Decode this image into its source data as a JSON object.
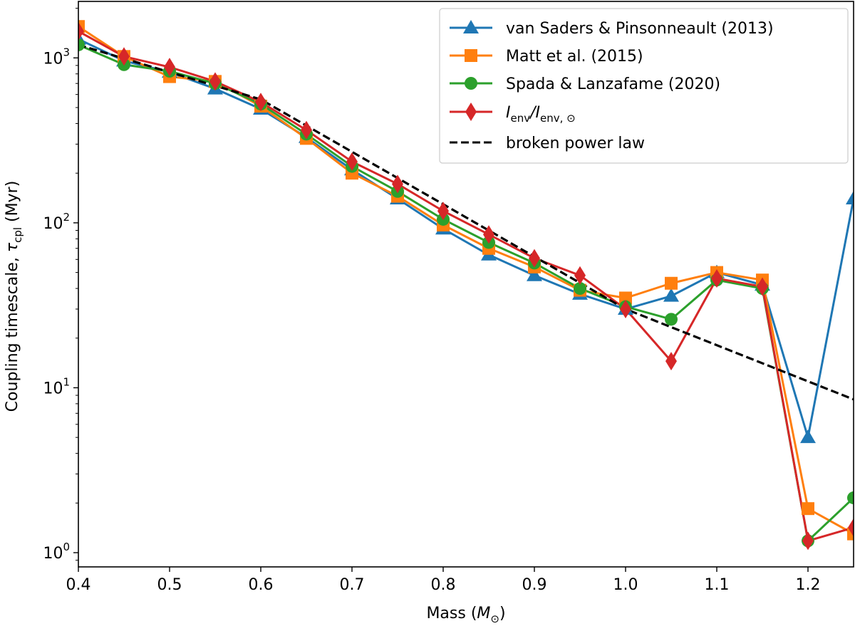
{
  "chart_data": {
    "type": "line",
    "xlabel": "Mass (",
    "xlabel_sym": "M",
    "xlabel_sub": "⊙",
    "xlabel_close": ")",
    "ylabel": "Coupling timescale, ",
    "ylabel_sym": "τ",
    "ylabel_sub": "cpl",
    "ylabel_unit": " (Myr)",
    "xlim": [
      0.4,
      1.25
    ],
    "ylim": [
      0.82,
      2200
    ],
    "yscale": "log",
    "grid": false,
    "legend_position": "top-right",
    "x_ticks": [
      "0.4",
      "0.5",
      "0.6",
      "0.7",
      "0.8",
      "0.9",
      "1.0",
      "1.1",
      "1.2"
    ],
    "y_ticks": [
      {
        "value": 1,
        "base": "10",
        "exp": "0"
      },
      {
        "value": 10,
        "base": "10",
        "exp": "1"
      },
      {
        "value": 100,
        "base": "10",
        "exp": "2"
      },
      {
        "value": 1000,
        "base": "10",
        "exp": "3"
      }
    ],
    "x": [
      0.4,
      0.45,
      0.5,
      0.55,
      0.6,
      0.65,
      0.7,
      0.75,
      0.8,
      0.85,
      0.9,
      0.95,
      1.0,
      1.05,
      1.1,
      1.15,
      1.2,
      1.25
    ],
    "series": [
      {
        "name": "van Saders & Pinsonneault (2013)",
        "color": "#1f77b4",
        "marker": "triangle",
        "values": [
          1300,
          960,
          820,
          650,
          490,
          330,
          210,
          140,
          92,
          64,
          48,
          37,
          30,
          36,
          50,
          42,
          5,
          140
        ]
      },
      {
        "name": "Matt et al. (2015)",
        "color": "#ff7f0e",
        "marker": "square",
        "values": [
          1550,
          1020,
          770,
          720,
          510,
          325,
          200,
          145,
          97,
          70,
          54,
          39,
          35,
          43,
          50,
          45,
          1.85,
          1.3
        ]
      },
      {
        "name": "Spada & Lanzafame (2020)",
        "color": "#2ca02c",
        "marker": "circle",
        "values": [
          1200,
          910,
          830,
          700,
          525,
          345,
          220,
          155,
          105,
          76,
          57,
          40,
          31,
          26,
          45,
          40,
          1.18,
          2.15
        ]
      },
      {
        "name_main": "I",
        "name_sub1": "env",
        "name_mid": "/I",
        "name_sub2": "env, ⊙",
        "color": "#d62728",
        "marker": "diamond",
        "values": [
          1450,
          1020,
          880,
          720,
          540,
          365,
          235,
          172,
          118,
          85,
          61,
          48,
          30,
          14.5,
          46,
          41,
          1.18,
          1.42
        ]
      }
    ],
    "fit_line": {
      "name": "broken power law",
      "color": "#000000",
      "style": "dashed",
      "x": [
        0.4,
        0.6,
        1.0,
        1.25
      ],
      "values": [
        1200,
        560,
        30,
        8.5
      ]
    }
  }
}
